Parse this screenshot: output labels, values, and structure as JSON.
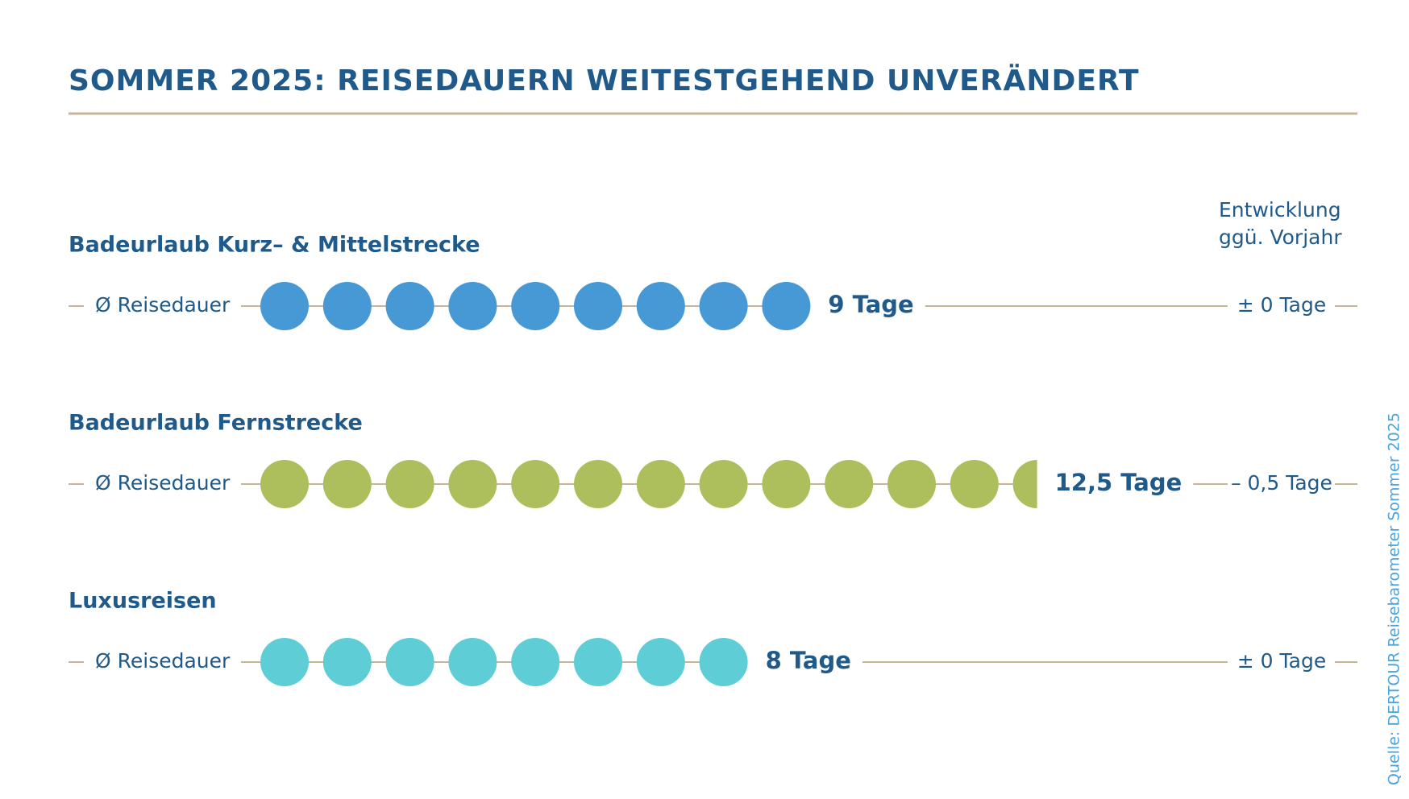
{
  "chart_data": {
    "type": "pictogram",
    "title": "SOMMER 2025: REISEDAUERN WEITESTGEHEND UNVERÄNDERT",
    "categories": [
      "Badeurlaub Kurz– & Mittelstrecke",
      "Badeurlaub Fernstrecke",
      "Luxusreisen"
    ],
    "measure_label": "Ø Reisedauer",
    "change_header": "Entwicklung ggü. Vorjahr",
    "series": [
      {
        "name": "Ø Reisedauer",
        "colors": [
          "#4699d4",
          "#adbf5c",
          "#5fcdd6"
        ],
        "values": [
          9,
          12.5,
          8
        ],
        "value_labels": [
          "9 Tage",
          "12,5 Tage",
          "8 Tage"
        ]
      }
    ],
    "change_labels": [
      "± 0 Tage",
      "– 0,5 Tage",
      "± 0 Tage"
    ],
    "source": "Quelle: DERTOUR Reisebarometer Sommer 2025"
  }
}
